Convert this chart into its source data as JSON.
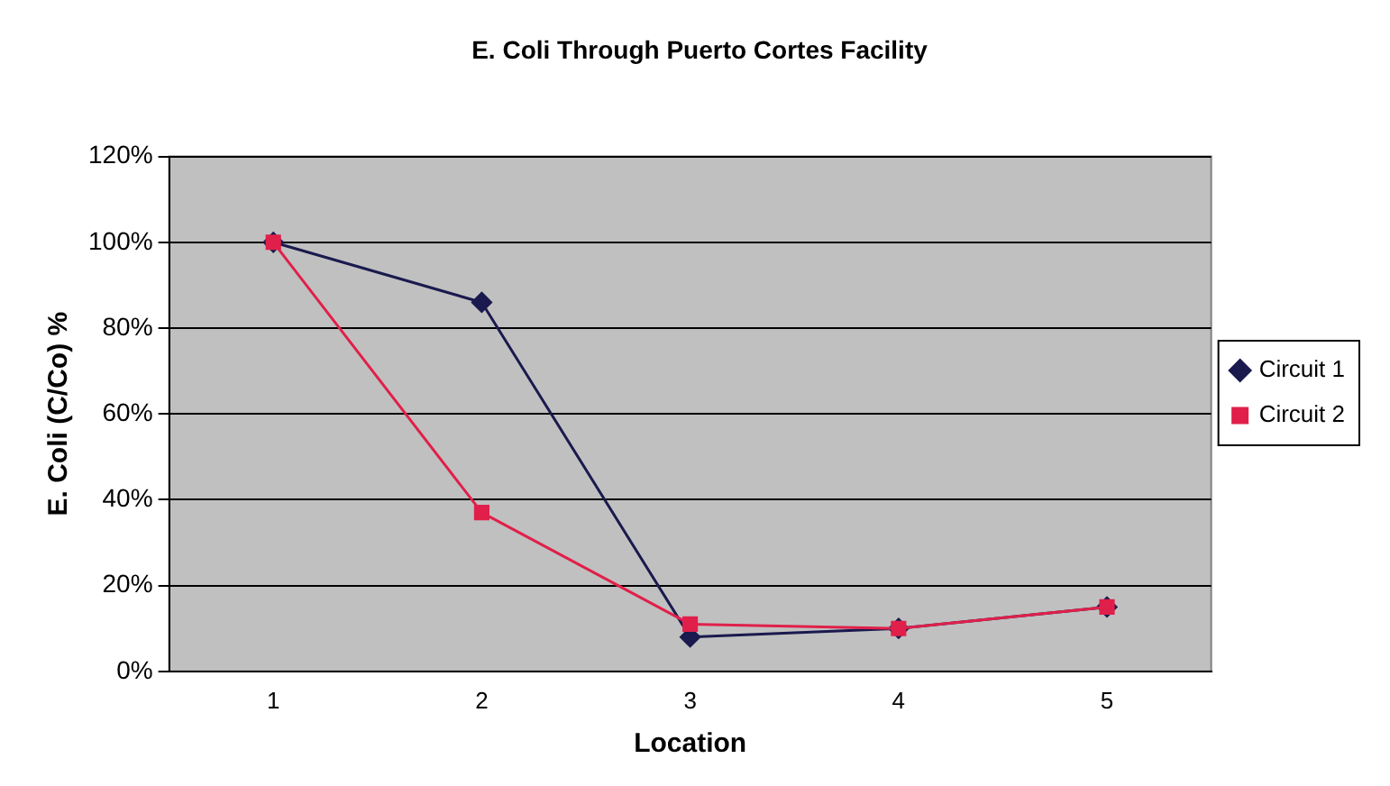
{
  "chart_data": {
    "type": "line",
    "title": "E. Coli Through Puerto Cortes Facility",
    "xlabel": "Location",
    "ylabel": "E. Coli (C/Co) %",
    "categories": [
      "1",
      "2",
      "3",
      "4",
      "5"
    ],
    "series": [
      {
        "name": "Circuit 1",
        "color": "#1a1a4e",
        "marker": "diamond",
        "values": [
          100,
          86,
          8,
          10,
          15
        ]
      },
      {
        "name": "Circuit 2",
        "color": "#e0204a",
        "marker": "square",
        "values": [
          100,
          37,
          11,
          10,
          15
        ]
      }
    ],
    "ylim": [
      0,
      120
    ],
    "yticks": [
      {
        "value": 0,
        "label": "0%"
      },
      {
        "value": 20,
        "label": "20%"
      },
      {
        "value": 40,
        "label": "40%"
      },
      {
        "value": 60,
        "label": "60%"
      },
      {
        "value": 80,
        "label": "80%"
      },
      {
        "value": 100,
        "label": "100%"
      },
      {
        "value": 120,
        "label": "120%"
      }
    ],
    "grid": "y",
    "legend": "right",
    "line_style": "solid"
  }
}
